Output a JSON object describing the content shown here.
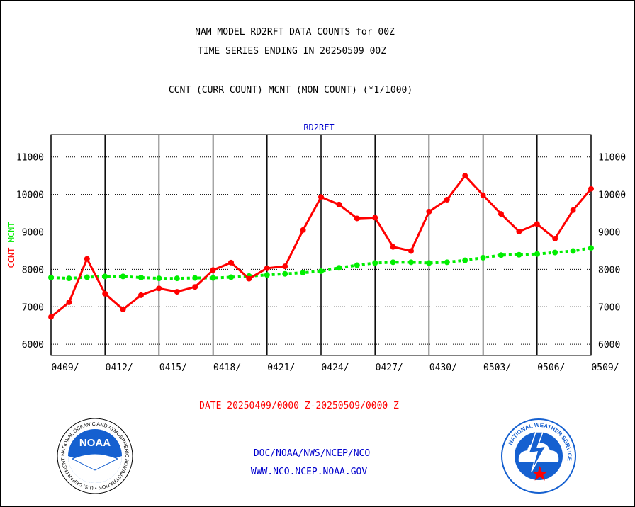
{
  "header": {
    "line1": "NAM MODEL RD2RFT DATA COUNTS for 00Z",
    "line2": "TIME SERIES ENDING IN 20250509 00Z",
    "line3": "CCNT (CURR COUNT) MCNT (MON COUNT) (*1/1000)"
  },
  "footer": {
    "date_range": "DATE 20250409/0000 Z-20250509/0000 Z",
    "org": "DOC/NOAA/NWS/NCEP/NCO",
    "url": "WWW.NCO.NCEP.NOAA.GOV"
  },
  "logos": {
    "noaa_text": "NOAA",
    "noaa_ring": "NATIONAL OCEANIC AND ATMOSPHERIC ADMINISTRATION • U.S. DEPARTMENT OF COMMERCE •",
    "nws_ring": "NATIONAL WEATHER SERVICE"
  },
  "colors": {
    "ccnt": "#ff0000",
    "mcnt": "#00ee00",
    "label_blue": "#0000cc",
    "grid": "#000000"
  },
  "chart_data": {
    "type": "line",
    "title": "RD2RFT",
    "ylabel_parts": [
      {
        "text": "CCNT",
        "color": "#ff0000"
      },
      {
        "text": "MCNT",
        "color": "#00ee00"
      }
    ],
    "ylim": [
      5700,
      11600
    ],
    "yticks": [
      6000,
      7000,
      8000,
      9000,
      10000,
      11000
    ],
    "xlim": [
      0,
      30
    ],
    "xticks": [
      {
        "x": 0,
        "label": "0409/"
      },
      {
        "x": 3,
        "label": "0412/"
      },
      {
        "x": 6,
        "label": "0415/"
      },
      {
        "x": 9,
        "label": "0418/"
      },
      {
        "x": 12,
        "label": "0421/"
      },
      {
        "x": 15,
        "label": "0424/"
      },
      {
        "x": 18,
        "label": "0427/"
      },
      {
        "x": 21,
        "label": "0430/"
      },
      {
        "x": 24,
        "label": "0503/"
      },
      {
        "x": 27,
        "label": "0506/"
      },
      {
        "x": 30,
        "label": "0509/"
      }
    ],
    "grid": true,
    "x": [
      0,
      1,
      2,
      3,
      4,
      5,
      6,
      7,
      8,
      9,
      10,
      11,
      12,
      13,
      14,
      15,
      16,
      17,
      18,
      19,
      20,
      21,
      22,
      23,
      24,
      25,
      26,
      27,
      28,
      29,
      30
    ],
    "series": [
      {
        "name": "CCNT",
        "color": "#ff0000",
        "style": "solid",
        "values": [
          6730,
          7120,
          8280,
          7350,
          6930,
          7310,
          7490,
          7400,
          7530,
          7980,
          8180,
          7750,
          8030,
          8080,
          9050,
          9930,
          9730,
          9360,
          9380,
          8600,
          8490,
          9540,
          9860,
          10500,
          9980,
          9480,
          9010,
          9210,
          8820,
          9580,
          10150
        ]
      },
      {
        "name": "MCNT",
        "color": "#00ee00",
        "style": "dotted",
        "values": [
          7780,
          7760,
          7790,
          7810,
          7810,
          7780,
          7760,
          7760,
          7770,
          7770,
          7790,
          7820,
          7850,
          7880,
          7910,
          7950,
          8040,
          8110,
          8170,
          8190,
          8190,
          8170,
          8190,
          8240,
          8310,
          8380,
          8390,
          8410,
          8450,
          8490,
          8570
        ]
      }
    ]
  }
}
